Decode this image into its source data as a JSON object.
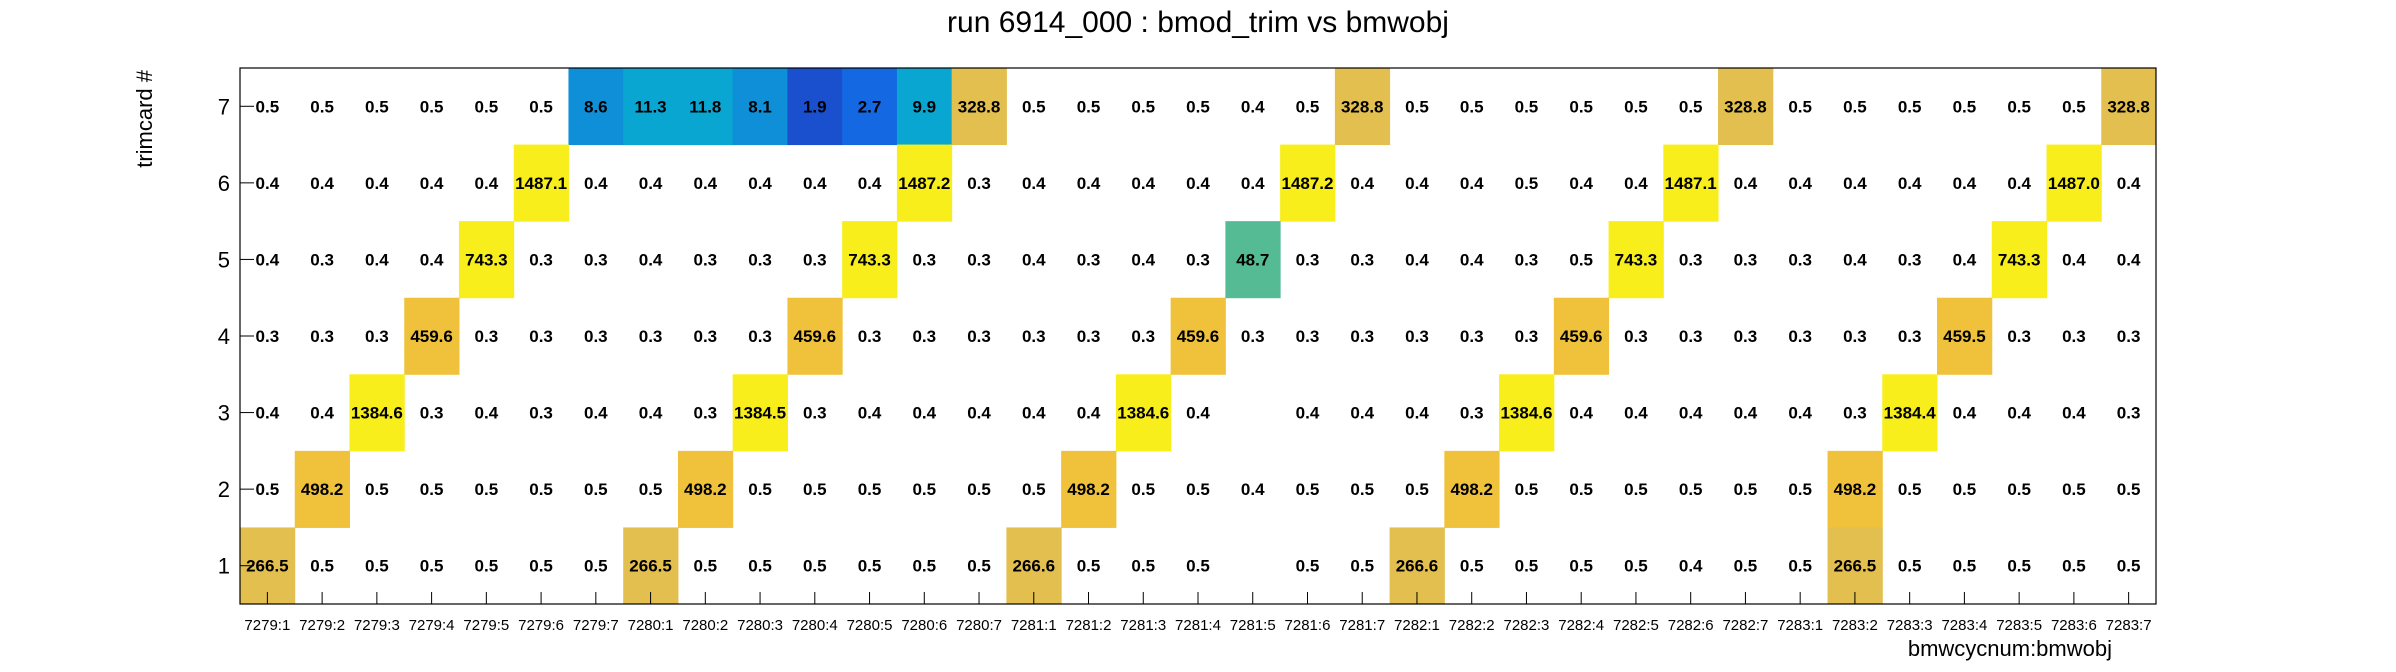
{
  "chart_data": {
    "type": "heatmap",
    "title": "run 6914_000 : bmod_trim vs bmwobj",
    "xlabel": "bmwcycnum:bmwobj",
    "ylabel": "trimcard #",
    "x_categories": [
      "7279:1",
      "7279:2",
      "7279:3",
      "7279:4",
      "7279:5",
      "7279:6",
      "7279:7",
      "7280:1",
      "7280:2",
      "7280:3",
      "7280:4",
      "7280:5",
      "7280:6",
      "7280:7",
      "7281:1",
      "7281:2",
      "7281:3",
      "7281:4",
      "7281:5",
      "7281:6",
      "7281:7",
      "7282:1",
      "7282:2",
      "7282:3",
      "7282:4",
      "7282:5",
      "7282:6",
      "7282:7",
      "7283:1",
      "7283:2",
      "7283:3",
      "7283:4",
      "7283:5",
      "7283:6",
      "7283:7"
    ],
    "y_categories": [
      "1",
      "2",
      "3",
      "4",
      "5",
      "6",
      "7"
    ],
    "rows": [
      {
        "y": "7",
        "values": [
          "0.5",
          "0.5",
          "0.5",
          "0.5",
          "0.5",
          "0.5",
          "8.6",
          "11.3",
          "11.8",
          "8.1",
          "1.9",
          "2.7",
          "9.9",
          "328.8",
          "0.5",
          "0.5",
          "0.5",
          "0.5",
          "0.4",
          "0.5",
          "328.8",
          "0.5",
          "0.5",
          "0.5",
          "0.5",
          "0.5",
          "0.5",
          "328.8",
          "0.5",
          "0.5",
          "0.5",
          "0.5",
          "0.5",
          "0.5",
          "328.8"
        ]
      },
      {
        "y": "6",
        "values": [
          "0.4",
          "0.4",
          "0.4",
          "0.4",
          "0.4",
          "1487.1",
          "0.4",
          "0.4",
          "0.4",
          "0.4",
          "0.4",
          "0.4",
          "1487.2",
          "0.3",
          "0.4",
          "0.4",
          "0.4",
          "0.4",
          "0.4",
          "1487.2",
          "0.4",
          "0.4",
          "0.4",
          "0.5",
          "0.4",
          "0.4",
          "1487.1",
          "0.4",
          "0.4",
          "0.4",
          "0.4",
          "0.4",
          "0.4",
          "1487.0",
          "0.4"
        ]
      },
      {
        "y": "5",
        "values": [
          "0.4",
          "0.3",
          "0.4",
          "0.4",
          "743.3",
          "0.3",
          "0.3",
          "0.4",
          "0.3",
          "0.3",
          "0.3",
          "743.3",
          "0.3",
          "0.3",
          "0.4",
          "0.3",
          "0.4",
          "0.3",
          "48.7",
          "0.3",
          "0.3",
          "0.4",
          "0.4",
          "0.3",
          "0.5",
          "743.3",
          "0.3",
          "0.3",
          "0.3",
          "0.4",
          "0.3",
          "0.4",
          "743.3",
          "0.4",
          "0.4"
        ]
      },
      {
        "y": "4",
        "values": [
          "0.3",
          "0.3",
          "0.3",
          "459.6",
          "0.3",
          "0.3",
          "0.3",
          "0.3",
          "0.3",
          "0.3",
          "459.6",
          "0.3",
          "0.3",
          "0.3",
          "0.3",
          "0.3",
          "0.3",
          "459.6",
          "0.3",
          "0.3",
          "0.3",
          "0.3",
          "0.3",
          "0.3",
          "459.6",
          "0.3",
          "0.3",
          "0.3",
          "0.3",
          "0.3",
          "0.3",
          "459.5",
          "0.3",
          "0.3",
          "0.3"
        ]
      },
      {
        "y": "3",
        "values": [
          "0.4",
          "0.4",
          "1384.6",
          "0.3",
          "0.4",
          "0.3",
          "0.4",
          "0.4",
          "0.3",
          "1384.5",
          "0.3",
          "0.4",
          "0.4",
          "0.4",
          "0.4",
          "0.4",
          "1384.6",
          "0.4",
          "",
          "0.4",
          "0.4",
          "0.4",
          "0.3",
          "1384.6",
          "0.4",
          "0.4",
          "0.4",
          "0.4",
          "0.4",
          "0.3",
          "1384.4",
          "0.4",
          "0.4",
          "0.4",
          "0.3"
        ]
      },
      {
        "y": "2",
        "values": [
          "0.5",
          "498.2",
          "0.5",
          "0.5",
          "0.5",
          "0.5",
          "0.5",
          "0.5",
          "498.2",
          "0.5",
          "0.5",
          "0.5",
          "0.5",
          "0.5",
          "0.5",
          "498.2",
          "0.5",
          "0.5",
          "0.4",
          "0.5",
          "0.5",
          "0.5",
          "498.2",
          "0.5",
          "0.5",
          "0.5",
          "0.5",
          "0.5",
          "0.5",
          "498.2",
          "0.5",
          "0.5",
          "0.5",
          "0.5",
          "0.5"
        ]
      },
      {
        "y": "1",
        "values": [
          "266.5",
          "0.5",
          "0.5",
          "0.5",
          "0.5",
          "0.5",
          "0.5",
          "266.5",
          "0.5",
          "0.5",
          "0.5",
          "0.5",
          "0.5",
          "0.5",
          "266.6",
          "0.5",
          "0.5",
          "0.5",
          "",
          "0.5",
          "0.5",
          "266.6",
          "0.5",
          "0.5",
          "0.5",
          "0.5",
          "0.4",
          "0.5",
          "0.5",
          "266.5",
          "0.5",
          "0.5",
          "0.5",
          "0.5",
          "0.5"
        ]
      }
    ],
    "palette": {
      "very_low": "#1a4fce",
      "low": "#1469e2",
      "mid_low": "#0f8fd8",
      "mid": "#0aa6d2",
      "teal": "#55bb94",
      "gold": "#e2bf4e",
      "amber": "#f0c23b",
      "yellow": "#f7ee1c",
      "empty": "#ffffff"
    },
    "grid": false,
    "legend": "none"
  }
}
